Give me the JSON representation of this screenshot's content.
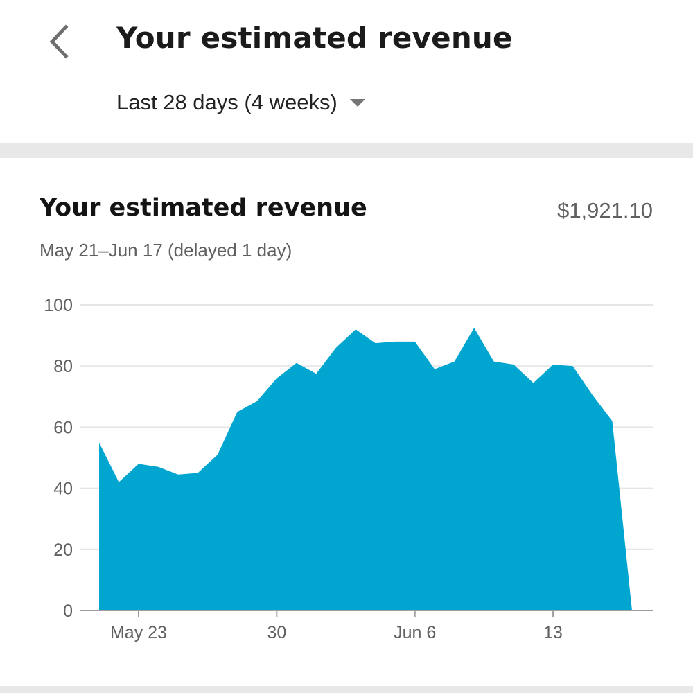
{
  "header": {
    "title": "Your estimated revenue",
    "period_label": "Last 28 days (4 weeks)",
    "back_icon": "chevron-left-icon",
    "dropdown_icon": "triangle-down-icon"
  },
  "card": {
    "title": "Your estimated revenue",
    "total": "$1,921.10",
    "subtitle": "May 21–Jun 17 (delayed 1 day)"
  },
  "colors": {
    "area": "#00a6d0",
    "gridline": "#e6e6e6",
    "axis": "#9e9e9e"
  },
  "chart_data": {
    "type": "area",
    "x": [
      "May 21",
      "May 22",
      "May 23",
      "May 24",
      "May 25",
      "May 26",
      "May 27",
      "May 28",
      "May 29",
      "May 30",
      "May 31",
      "Jun 1",
      "Jun 2",
      "Jun 3",
      "Jun 4",
      "Jun 5",
      "Jun 6",
      "Jun 7",
      "Jun 8",
      "Jun 9",
      "Jun 10",
      "Jun 11",
      "Jun 12",
      "Jun 13",
      "Jun 14",
      "Jun 15",
      "Jun 16",
      "Jun 17"
    ],
    "series": [
      {
        "values": [
          55,
          42,
          48,
          47,
          44.5,
          45,
          51,
          65,
          68.5,
          76,
          81,
          77.5,
          86,
          92,
          87.5,
          88,
          88,
          79,
          81.5,
          92.5,
          81.5,
          80.5,
          74.5,
          80.5,
          80,
          70.5,
          62,
          0
        ]
      }
    ],
    "xticks": [
      {
        "label": "May 23",
        "at": "May 23"
      },
      {
        "label": "30",
        "at": "May 30"
      },
      {
        "label": "Jun 6",
        "at": "Jun 6"
      },
      {
        "label": "13",
        "at": "Jun 13"
      }
    ],
    "yticks": [
      0,
      20,
      40,
      60,
      80,
      100
    ],
    "ylim": [
      0,
      100
    ],
    "grid": true,
    "xlabel": "",
    "ylabel": "",
    "title": "",
    "legend": "none"
  }
}
